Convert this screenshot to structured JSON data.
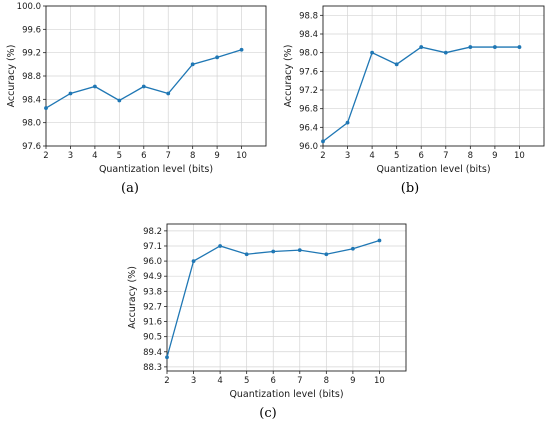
{
  "chart_data": [
    {
      "panel": "(a)",
      "type": "line",
      "xlabel": "Quantization level (bits)",
      "ylabel": "Accuracy (%)",
      "x": [
        2,
        3,
        4,
        5,
        6,
        7,
        8,
        9,
        10
      ],
      "xticks": [
        "2",
        "3",
        "4",
        "5",
        "6",
        "7",
        "8",
        "9",
        "10"
      ],
      "xlim": [
        2,
        11
      ],
      "yticks": [
        "97.6",
        "98.0",
        "98.4",
        "98.8",
        "99.2",
        "99.6",
        "100.0"
      ],
      "ylim": [
        97.6,
        100.0
      ],
      "grid": true,
      "color": "#1f77b4",
      "series": [
        {
          "values": [
            98.25,
            98.5,
            98.62,
            98.38,
            98.62,
            98.5,
            99.0,
            99.12,
            99.25
          ]
        }
      ]
    },
    {
      "panel": "(b)",
      "type": "line",
      "xlabel": "Quantization level (bits)",
      "ylabel": "Accuracy (%)",
      "x": [
        2,
        3,
        4,
        5,
        6,
        7,
        8,
        9,
        10
      ],
      "xticks": [
        "2",
        "3",
        "4",
        "5",
        "6",
        "7",
        "8",
        "9",
        "10"
      ],
      "xlim": [
        2,
        11
      ],
      "yticks": [
        "96.0",
        "96.4",
        "96.8",
        "97.2",
        "97.6",
        "98.0",
        "98.4",
        "98.8"
      ],
      "ylim": [
        96.0,
        99.0
      ],
      "grid": true,
      "color": "#1f77b4",
      "series": [
        {
          "values": [
            96.1,
            96.5,
            98.0,
            97.75,
            98.12,
            98.0,
            98.12,
            98.12,
            98.12
          ]
        }
      ]
    },
    {
      "panel": "(c)",
      "type": "line",
      "xlabel": "Quantization level (bits)",
      "ylabel": "Accuracy (%)",
      "x": [
        2,
        3,
        4,
        5,
        6,
        7,
        8,
        9,
        10
      ],
      "xticks": [
        "2",
        "3",
        "4",
        "5",
        "6",
        "7",
        "8",
        "9",
        "10"
      ],
      "xlim": [
        2,
        11
      ],
      "yticks": [
        "88.3",
        "89.4",
        "90.5",
        "91.6",
        "92.7",
        "93.8",
        "94.9",
        "96.0",
        "97.1",
        "98.2"
      ],
      "ylim": [
        88.0,
        98.7
      ],
      "grid": true,
      "color": "#1f77b4",
      "series": [
        {
          "values": [
            89.0,
            96.0,
            97.1,
            96.5,
            96.7,
            96.8,
            96.5,
            96.9,
            97.5
          ]
        }
      ]
    }
  ]
}
